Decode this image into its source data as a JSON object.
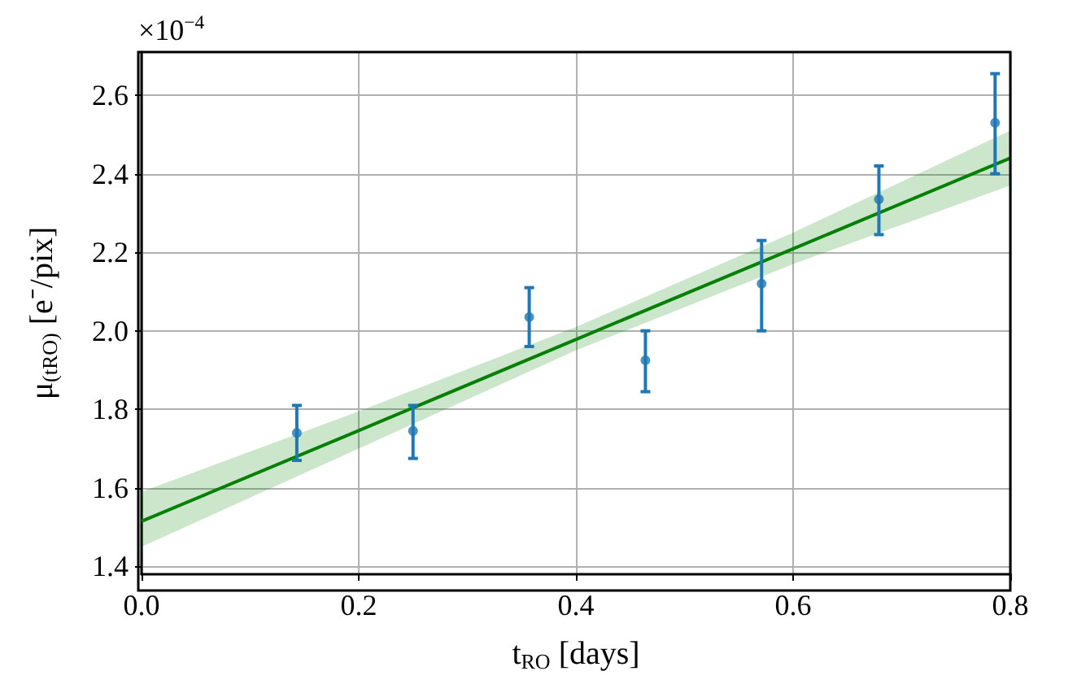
{
  "chart_data": {
    "type": "scatter",
    "xlabel": "t$_{RO}$ [days]",
    "ylabel": "μ$_{(tRO)}$ [e⁻/pix]",
    "annotations": [
      "×10$^{−4}$"
    ],
    "xlim": [
      0,
      0.8
    ],
    "xticks": [
      {
        "value": 0,
        "label": "0.0"
      },
      {
        "value": 0.2,
        "label": "0.2"
      },
      {
        "value": 0.4,
        "label": "0.4"
      },
      {
        "value": 0.6,
        "label": "0.6"
      },
      {
        "value": 0.8,
        "label": "0.8"
      }
    ],
    "ylim": [
      1.38,
      2.71
    ],
    "yticks": [
      {
        "value": 1.4,
        "label": "1.4"
      },
      {
        "value": 1.6,
        "label": "1.6"
      },
      {
        "value": 1.8,
        "label": "1.8"
      },
      {
        "value": 2.0,
        "label": "2.0"
      },
      {
        "value": 2.2,
        "label": "2.2"
      },
      {
        "value": 2.4,
        "label": "2.4"
      },
      {
        "value": 2.6,
        "label": "2.6"
      }
    ],
    "grid": true,
    "series": [
      {
        "color": "#1f77b4",
        "marker": "circle",
        "x": [
          0.143,
          0.25,
          0.357,
          0.464,
          0.571,
          0.679,
          0.786
        ],
        "values": [
          1.74,
          1.745,
          2.035,
          1.925,
          2.12,
          2.335,
          2.53
        ],
        "errors": [
          [
            1.67,
            1.81
          ],
          [
            1.675,
            1.81
          ],
          [
            1.96,
            2.11
          ],
          [
            1.845,
            2.0
          ],
          [
            2.0,
            2.23
          ],
          [
            2.245,
            2.42
          ],
          [
            2.4,
            2.655
          ]
        ]
      },
      {
        "type": "line",
        "color": "#008000",
        "x": [
          0,
          0.2,
          0.4,
          0.6,
          0.8
        ],
        "values": [
          1.515,
          1.746,
          1.978,
          2.209,
          2.44
        ],
        "lower": [
          1.45,
          1.7,
          1.95,
          2.17,
          2.37
        ],
        "upper": [
          1.59,
          1.795,
          2.01,
          2.25,
          2.51
        ]
      }
    ]
  }
}
